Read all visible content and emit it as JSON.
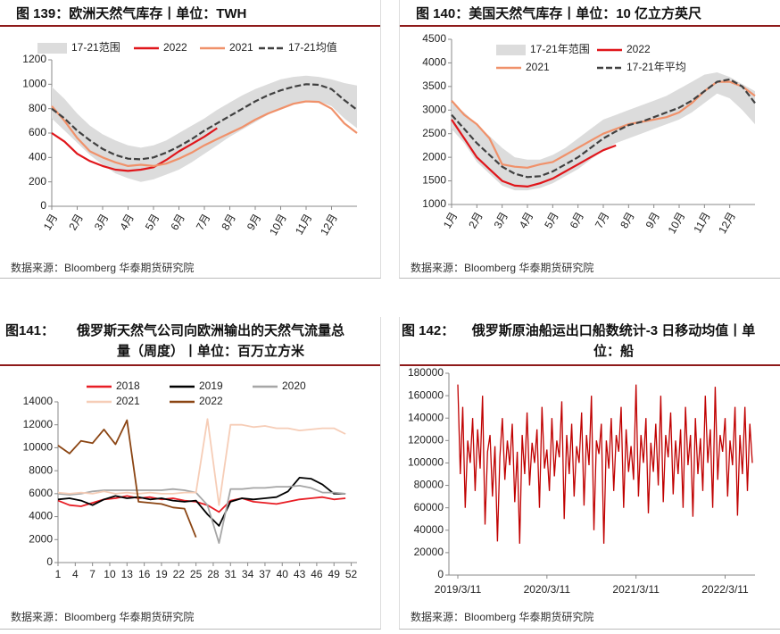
{
  "chart_data": [
    {
      "type": "line",
      "figure": "图 139：",
      "title": "欧洲天然气库存丨单位：TWH",
      "source": "数据来源：Bloomberg 华泰期货研究院",
      "x": [
        0,
        0.5,
        1,
        1.5,
        2,
        2.5,
        3,
        3.5,
        4,
        4.5,
        5,
        5.5,
        6,
        6.5,
        7,
        7.5,
        8,
        8.5,
        9,
        9.5,
        10,
        10.5,
        11,
        11.5,
        12
      ],
      "xlim": [
        0,
        12
      ],
      "xticks": [
        {
          "value": 0,
          "label": "1月"
        },
        {
          "value": 1,
          "label": "2月"
        },
        {
          "value": 2,
          "label": "3月"
        },
        {
          "value": 3,
          "label": "4月"
        },
        {
          "value": 4,
          "label": "5月"
        },
        {
          "value": 5,
          "label": "6月"
        },
        {
          "value": 6,
          "label": "7月"
        },
        {
          "value": 7,
          "label": "8月"
        },
        {
          "value": 8,
          "label": "9月"
        },
        {
          "value": 9,
          "label": "10月"
        },
        {
          "value": 10,
          "label": "11月"
        },
        {
          "value": 11,
          "label": "12月"
        }
      ],
      "ylim": [
        0,
        1200
      ],
      "yticks": [
        0,
        200,
        400,
        600,
        800,
        1000,
        1200
      ],
      "series": [
        {
          "name": "17-21范围",
          "style": "band",
          "color": "#dcdcdc",
          "lower": [
            720,
            620,
            520,
            420,
            340,
            270,
            230,
            200,
            220,
            260,
            300,
            360,
            430,
            500,
            570,
            630,
            690,
            750,
            800,
            840,
            870,
            860,
            820,
            720,
            640
          ],
          "upper": [
            980,
            880,
            760,
            660,
            590,
            540,
            500,
            480,
            500,
            540,
            600,
            660,
            720,
            790,
            850,
            910,
            960,
            1000,
            1040,
            1060,
            1070,
            1060,
            1040,
            1010,
            990
          ]
        },
        {
          "name": "2022",
          "style": "line",
          "color": "#e0161b",
          "values": [
            600,
            530,
            430,
            370,
            330,
            300,
            290,
            300,
            320,
            380,
            450,
            510,
            570,
            640,
            null,
            null,
            null,
            null,
            null,
            null,
            null,
            null,
            null,
            null,
            null
          ]
        },
        {
          "name": "2021",
          "style": "line",
          "color": "#f0916a",
          "values": [
            820,
            700,
            560,
            450,
            400,
            360,
            330,
            340,
            330,
            350,
            390,
            440,
            500,
            550,
            600,
            650,
            710,
            760,
            800,
            840,
            860,
            855,
            800,
            680,
            600
          ]
        },
        {
          "name": "17-21均值",
          "style": "dashed",
          "color": "#404040",
          "values": [
            800,
            720,
            620,
            540,
            470,
            420,
            390,
            385,
            400,
            440,
            490,
            550,
            620,
            680,
            740,
            800,
            860,
            910,
            950,
            980,
            1000,
            995,
            960,
            870,
            790
          ]
        }
      ]
    },
    {
      "type": "line",
      "figure": "图 140：",
      "title": "美国天然气库存丨单位：10 亿立方英尺",
      "source": "数据来源：Bloomberg 华泰期货研究院",
      "x": [
        0,
        0.5,
        1,
        1.5,
        2,
        2.5,
        3,
        3.5,
        4,
        4.5,
        5,
        5.5,
        6,
        6.5,
        7,
        7.5,
        8,
        8.5,
        9,
        9.5,
        10,
        10.5,
        11,
        11.5,
        12
      ],
      "xlim": [
        0,
        12
      ],
      "xticks": [
        {
          "value": 0,
          "label": "1月"
        },
        {
          "value": 1,
          "label": "2月"
        },
        {
          "value": 2,
          "label": "3月"
        },
        {
          "value": 3,
          "label": "4月"
        },
        {
          "value": 4,
          "label": "5月"
        },
        {
          "value": 5,
          "label": "6月"
        },
        {
          "value": 6,
          "label": "7月"
        },
        {
          "value": 7,
          "label": "8月"
        },
        {
          "value": 8,
          "label": "9月"
        },
        {
          "value": 9,
          "label": "10月"
        },
        {
          "value": 10,
          "label": "11月"
        },
        {
          "value": 11,
          "label": "12月"
        }
      ],
      "ylim": [
        1000,
        4500
      ],
      "yticks": [
        1000,
        1500,
        2000,
        2500,
        3000,
        3500,
        4000,
        4500
      ],
      "series": [
        {
          "name": "17-21年范围",
          "style": "band",
          "color": "#dcdcdc",
          "lower": [
            2600,
            2300,
            1900,
            1650,
            1400,
            1300,
            1300,
            1350,
            1450,
            1600,
            1750,
            1950,
            2150,
            2300,
            2400,
            2500,
            2600,
            2700,
            2800,
            2950,
            3150,
            3350,
            3250,
            3000,
            2700
          ],
          "upper": [
            3150,
            2950,
            2700,
            2450,
            2200,
            2000,
            1950,
            1950,
            2050,
            2200,
            2400,
            2600,
            2800,
            2900,
            3000,
            3100,
            3200,
            3300,
            3450,
            3600,
            3750,
            3800,
            3700,
            3550,
            3400
          ]
        },
        {
          "name": "2022",
          "style": "line",
          "color": "#e0161b",
          "values": [
            2800,
            2400,
            2000,
            1750,
            1500,
            1400,
            1380,
            1450,
            1550,
            1700,
            1850,
            2000,
            2150,
            2250,
            null,
            null,
            null,
            null,
            null,
            null,
            null,
            null,
            null,
            null,
            null
          ]
        },
        {
          "name": "2021",
          "style": "line",
          "color": "#f0916a",
          "values": [
            3200,
            2900,
            2700,
            2400,
            1850,
            1800,
            1780,
            1850,
            1900,
            2050,
            2200,
            2350,
            2500,
            2600,
            2700,
            2750,
            2800,
            2850,
            2950,
            3150,
            3400,
            3600,
            3600,
            3500,
            3300
          ]
        },
        {
          "name": "17-21年平均",
          "style": "dashed",
          "color": "#404040",
          "values": [
            2900,
            2600,
            2300,
            2050,
            1800,
            1650,
            1580,
            1600,
            1700,
            1850,
            2000,
            2200,
            2400,
            2550,
            2680,
            2750,
            2850,
            2950,
            3050,
            3200,
            3400,
            3600,
            3650,
            3500,
            3150
          ]
        }
      ]
    },
    {
      "type": "line",
      "figure": "图141：",
      "title": "俄罗斯天然气公司向欧洲输出的天然气流量总量（周度）丨单位：百万立方米",
      "source": "数据来源：Bloomberg 华泰期货研究院",
      "x": [
        1,
        3,
        5,
        7,
        9,
        11,
        13,
        15,
        17,
        19,
        21,
        23,
        25,
        27,
        29,
        31,
        33,
        35,
        37,
        39,
        41,
        43,
        45,
        47,
        49,
        51
      ],
      "xlim": [
        1,
        53
      ],
      "xticks": [
        1,
        4,
        7,
        10,
        13,
        16,
        19,
        22,
        25,
        28,
        31,
        34,
        37,
        40,
        43,
        46,
        49,
        52
      ],
      "ylim": [
        0,
        14000
      ],
      "yticks": [
        0,
        2000,
        4000,
        6000,
        8000,
        10000,
        12000,
        14000
      ],
      "series": [
        {
          "name": "2018",
          "style": "line",
          "color": "#e81e25",
          "values": [
            5400,
            5000,
            4900,
            5200,
            5500,
            5600,
            5800,
            5600,
            5700,
            5500,
            5600,
            5400,
            5300,
            5000,
            4400,
            5400,
            5600,
            5300,
            5200,
            5100,
            5300,
            5500,
            5600,
            5700,
            5500,
            5600
          ]
        },
        {
          "name": "2019",
          "style": "line",
          "color": "#000000",
          "values": [
            5500,
            5600,
            5400,
            5000,
            5500,
            5800,
            5600,
            5700,
            5500,
            5600,
            5400,
            5300,
            5400,
            4200,
            3200,
            5300,
            5600,
            5500,
            5600,
            5700,
            6200,
            7400,
            7300,
            6800,
            6000,
            6000
          ]
        },
        {
          "name": "2020",
          "style": "line",
          "color": "#a6a6a6",
          "values": [
            6000,
            5900,
            6000,
            6200,
            6300,
            6300,
            6300,
            6300,
            6300,
            6300,
            6400,
            6300,
            6100,
            5000,
            1700,
            6400,
            6400,
            6500,
            6500,
            6600,
            6600,
            6700,
            6500,
            6100,
            6100,
            6000
          ]
        },
        {
          "name": "2021",
          "style": "line",
          "color": "#f6cdb7",
          "values": [
            6100,
            6000,
            6100,
            6000,
            6200,
            6000,
            6100,
            6000,
            6100,
            6000,
            6000,
            6100,
            6100,
            12500,
            5000,
            12000,
            12000,
            11800,
            11900,
            11700,
            11700,
            11500,
            11600,
            11700,
            11700,
            11200
          ]
        },
        {
          "name": "2022",
          "style": "line",
          "color": "#8b4513",
          "values": [
            10200,
            9500,
            10600,
            10400,
            11600,
            10300,
            12400,
            5300,
            5200,
            5100,
            4800,
            4700,
            2200,
            null,
            null,
            null,
            null,
            null,
            null,
            null,
            null,
            null,
            null,
            null,
            null,
            null
          ]
        }
      ]
    },
    {
      "type": "line",
      "figure": "图 142：",
      "title": "俄罗斯原油船运出口船数统计-3 日移动均值丨单位：船",
      "source": "数据来源：Bloomberg 华泰期货研究院",
      "color": "#c00000",
      "categories": [
        "2019/3/11",
        null,
        null,
        null,
        null,
        null,
        null,
        null,
        null,
        null,
        null,
        null,
        null,
        null,
        null,
        null,
        null,
        null,
        null,
        null,
        null,
        null,
        null,
        null,
        null,
        null,
        null,
        null,
        null,
        null,
        null,
        null,
        null,
        null,
        null,
        null,
        "2020/3/11",
        null,
        null,
        null,
        null,
        null,
        null,
        null,
        null,
        null,
        null,
        null,
        null,
        null,
        null,
        null,
        null,
        null,
        null,
        null,
        null,
        null,
        null,
        null,
        null,
        null,
        null,
        null,
        null,
        null,
        null,
        null,
        null,
        null,
        null,
        null,
        "2021/3/11",
        null,
        null,
        null,
        null,
        null,
        null,
        null,
        null,
        null,
        null,
        null,
        null,
        null,
        null,
        null,
        null,
        null,
        null,
        null,
        null,
        null,
        null,
        null,
        null,
        null,
        null,
        null,
        null,
        null,
        null,
        null,
        null,
        null,
        null,
        null,
        "2022/3/11",
        null,
        null,
        null,
        null,
        null,
        null,
        null,
        null,
        null,
        null,
        null
      ],
      "values": [
        170000,
        90000,
        150000,
        60000,
        120000,
        100000,
        140000,
        75000,
        130000,
        95000,
        160000,
        45000,
        110000,
        125000,
        70000,
        115000,
        30000,
        105000,
        140000,
        85000,
        120000,
        98000,
        135000,
        65000,
        110000,
        28000,
        125000,
        90000,
        145000,
        80000,
        118000,
        100000,
        130000,
        60000,
        150000,
        95000,
        112000,
        75000,
        140000,
        88000,
        120000,
        105000,
        155000,
        50000,
        125000,
        90000,
        135000,
        70000,
        115000,
        100000,
        145000,
        62000,
        125000,
        98000,
        160000,
        40000,
        120000,
        108000,
        135000,
        28000,
        120000,
        95000,
        140000,
        75000,
        125000,
        110000,
        150000,
        60000,
        130000,
        92000,
        115000,
        85000,
        170000,
        70000,
        125000,
        100000,
        140000,
        55000,
        118000,
        92000,
        135000,
        80000,
        160000,
        65000,
        125000,
        105000,
        145000,
        72000,
        120000,
        90000,
        130000,
        60000,
        150000,
        98000,
        125000,
        52000,
        140000,
        90000,
        122000,
        75000,
        160000,
        100000,
        130000,
        60000,
        168000,
        85000,
        125000,
        110000,
        140000,
        70000,
        120000,
        98000,
        150000,
        53000,
        125000,
        90000,
        150000,
        75000,
        135000,
        100000
      ],
      "ylim": [
        0,
        180000
      ],
      "yticks": [
        0,
        20000,
        40000,
        60000,
        80000,
        100000,
        120000,
        140000,
        160000,
        180000
      ]
    }
  ]
}
